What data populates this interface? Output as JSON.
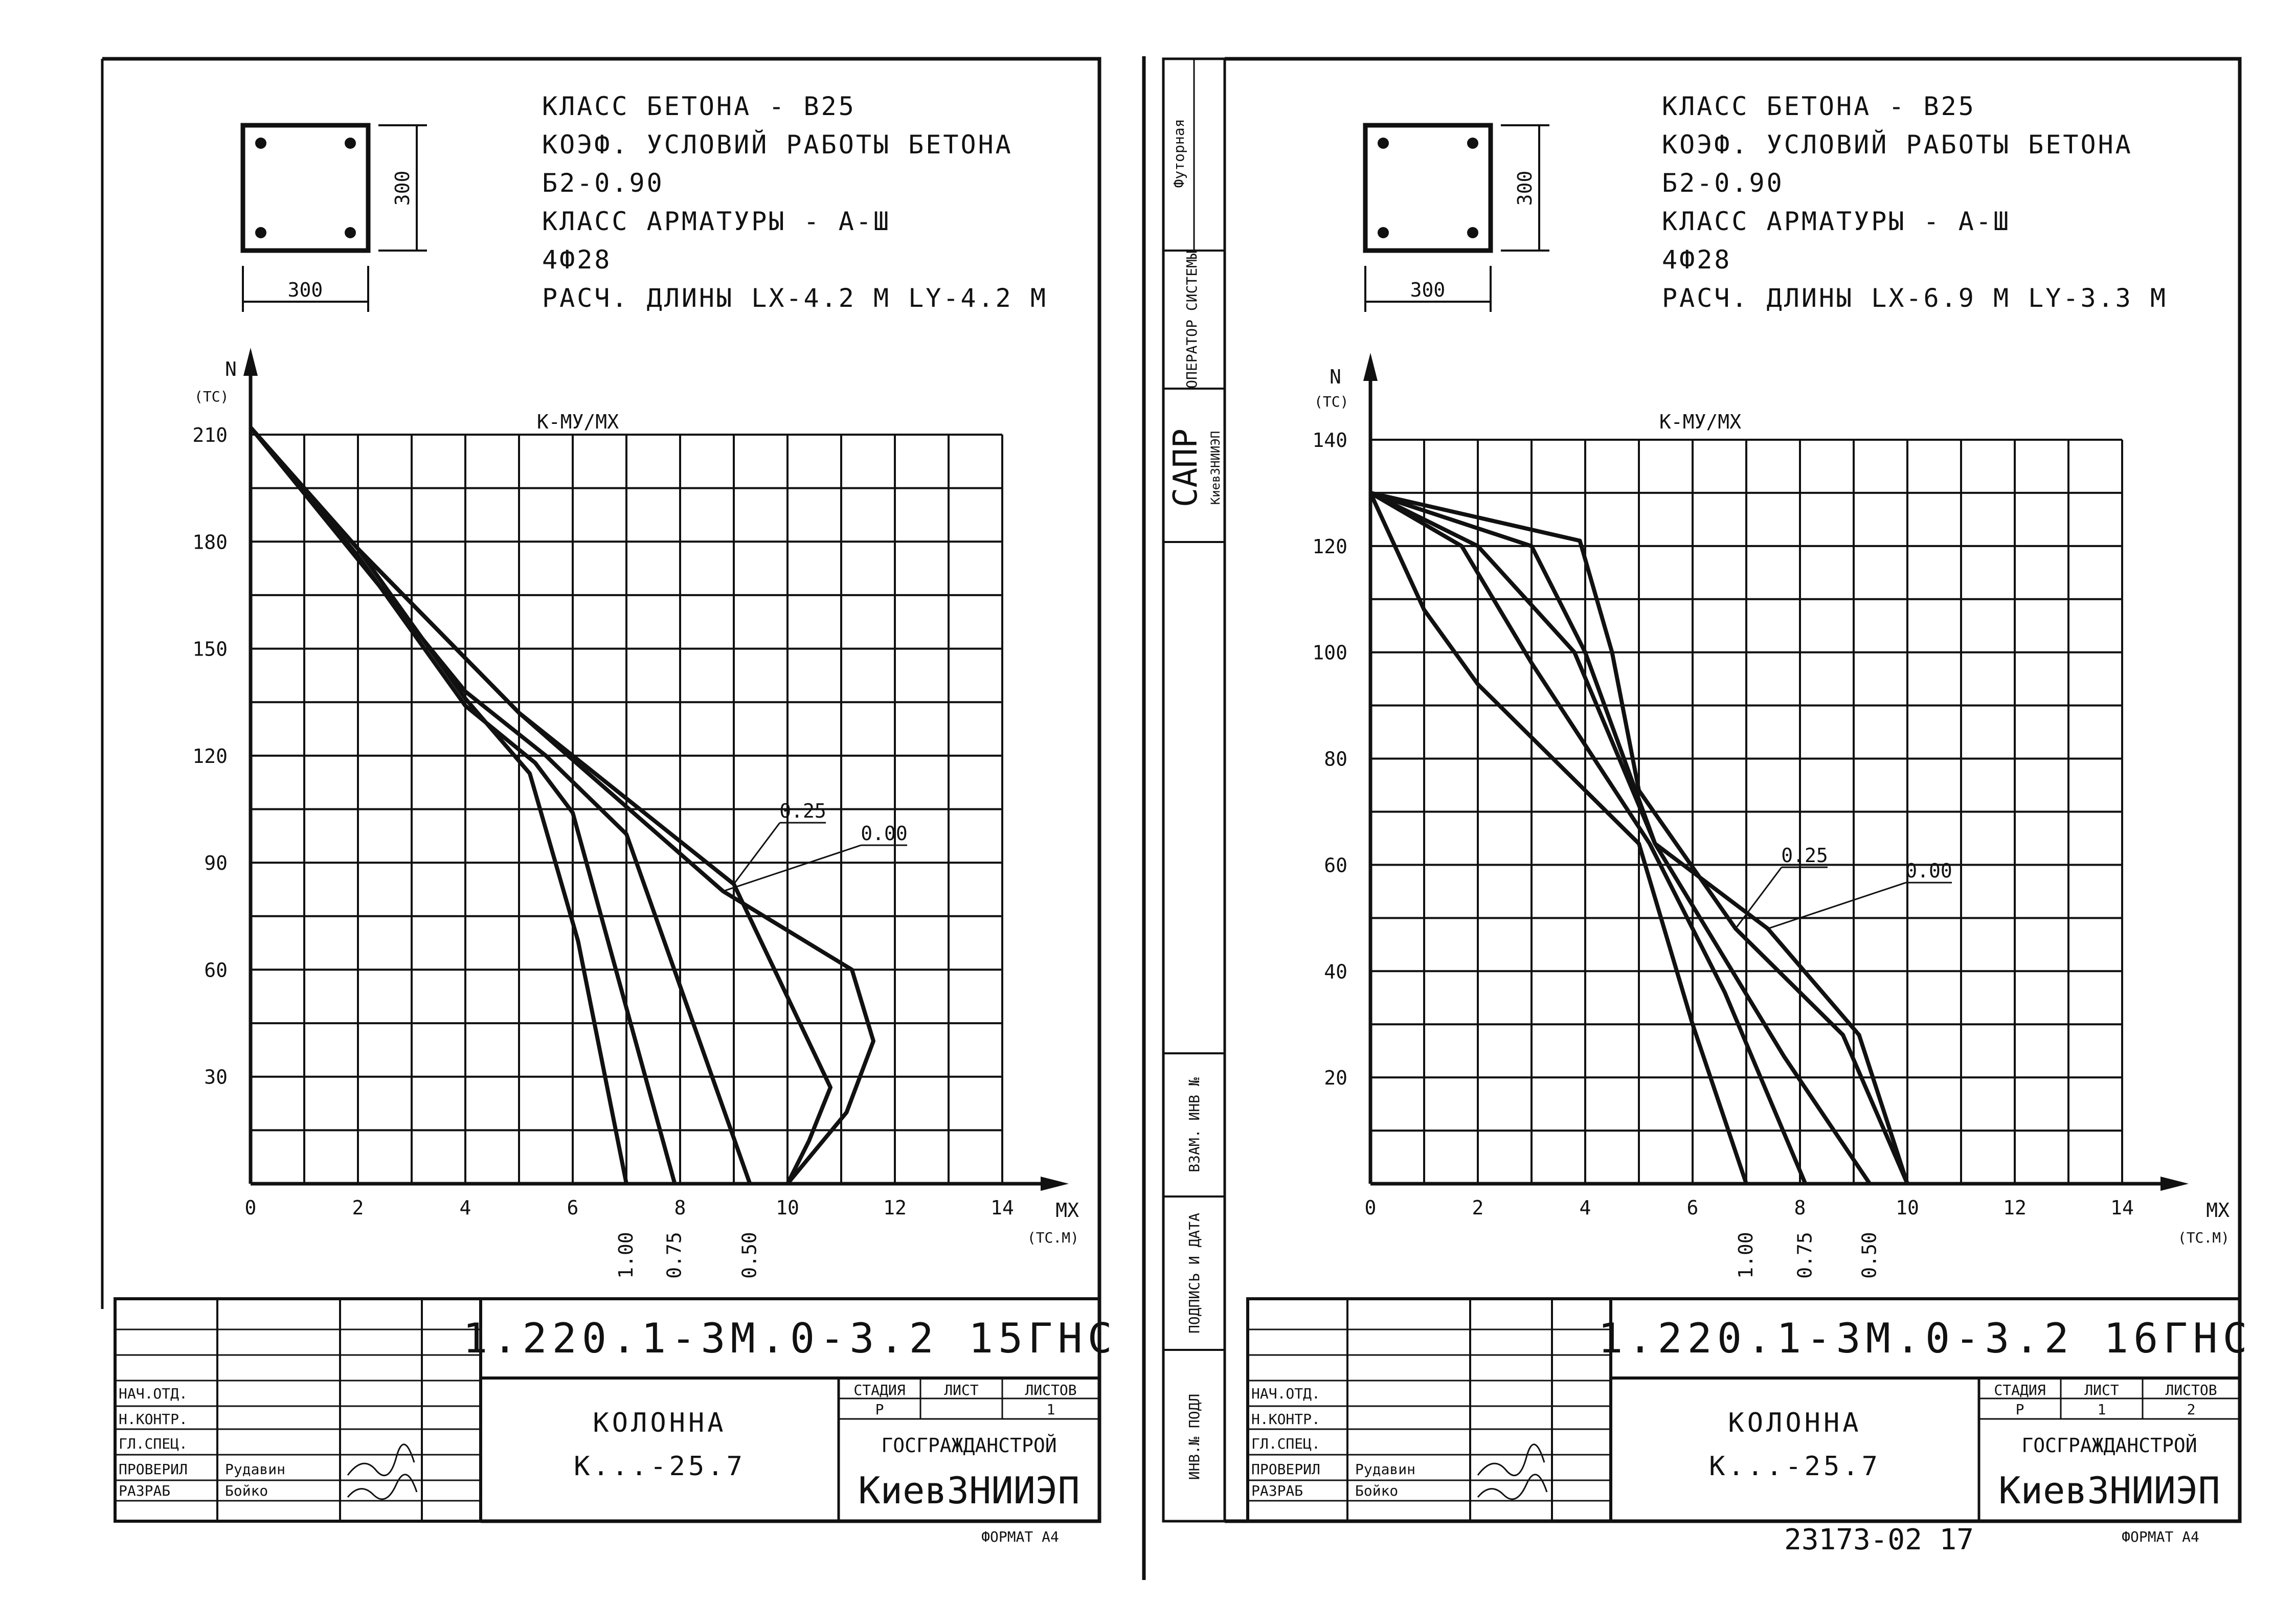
{
  "sheets": [
    {
      "section": {
        "dim_h": "300",
        "dim_v": "300"
      },
      "header": [
        "КЛАСС БЕТОНА - B25",
        "КОЭФ. УСЛОВИЙ РАБОТЫ БЕТОНА",
        "Б2-0.90",
        "КЛАСС АРМАТУРЫ - А-Ш",
        "4Ф28",
        "РАСЧ. ДЛИНЫ  LX-4.2 М  LY-4.2 М"
      ],
      "title_block": {
        "code": "1.220.1-3М.0-3.2 15ГНС",
        "name": "КОЛОННА",
        "mark": "К...-25.7",
        "stage_hdr": "СТАДИЯ",
        "sheet_hdr": "ЛИСТ",
        "sheets_hdr": "ЛИСТОВ",
        "stage": "Р",
        "sheet": "",
        "sheets": "1",
        "org1": "ГОСГРАЖДАНСТРОЙ",
        "org2": "КиевЗНИИЭП",
        "roles": [
          "НАЧ.ОТД.",
          "Н.КОНТР.",
          "ГЛ.СПЕЦ.",
          "ПРОВЕРИЛ",
          "РАЗРАБ"
        ],
        "names": [
          "",
          "",
          "",
          "Рудавин",
          "Бойко"
        ],
        "format": "ФОРМАТ А4"
      }
    },
    {
      "section": {
        "dim_h": "300",
        "dim_v": "300"
      },
      "header": [
        "КЛАСС БЕТОНА - B25",
        "КОЭФ. УСЛОВИЙ РАБОТЫ БЕТОНА",
        "Б2-0.90",
        "КЛАСС АРМАТУРЫ - А-Ш",
        "4Ф28",
        "РАСЧ. ДЛИНЫ  LX-6.9 М  LY-3.3 М"
      ],
      "title_block": {
        "code": "1.220.1-3М.0-3.2 16ГНС",
        "name": "КОЛОННА",
        "mark": "К...-25.7",
        "stage_hdr": "СТАДИЯ",
        "sheet_hdr": "ЛИСТ",
        "sheets_hdr": "ЛИСТОВ",
        "stage": "Р",
        "sheet": "1",
        "sheets": "2",
        "org1": "ГОСГРАЖДАНСТРОЙ",
        "org2": "КиевЗНИИЭП",
        "roles": [
          "НАЧ.ОТД.",
          "Н.КОНТР.",
          "ГЛ.СПЕЦ.",
          "ПРОВЕРИЛ",
          "РАЗРАБ"
        ],
        "names": [
          "",
          "",
          "",
          "Рудавин",
          "Бойко"
        ],
        "format": "ФОРМАТ А4"
      },
      "stamp": "23173-02 17"
    }
  ],
  "side_strip": {
    "futorial": "Футорная",
    "operator": "ОПЕРАТОР СИСТЕМЫ",
    "sapr": "САПР",
    "kiev": "КиевЗНИИЭП",
    "vzam": "ВЗАМ. ИНВ №",
    "podpis": "ПОДПИСЬ И ДАТА",
    "inv": "ИНВ.№ ПОДЛ"
  },
  "chart_data": [
    {
      "type": "line",
      "title": "К-МУ/МХ",
      "xlabel": "МХ (ТС.М)",
      "ylabel": "N (ТС)",
      "xlim": [
        0,
        14
      ],
      "ylim": [
        0,
        210
      ],
      "x_ticks": [
        0,
        2,
        4,
        6,
        8,
        10,
        12,
        14
      ],
      "y_ticks": [
        30,
        60,
        90,
        120,
        150,
        180,
        210
      ],
      "grid": true,
      "series": [
        {
          "name": "1.00",
          "points": [
            [
              0,
              212
            ],
            [
              2,
              178
            ],
            [
              4,
              136
            ],
            [
              5.2,
              115
            ],
            [
              6.1,
              68
            ],
            [
              7.0,
              0
            ]
          ]
        },
        {
          "name": "0.75",
          "points": [
            [
              0,
              212
            ],
            [
              2,
              176
            ],
            [
              4,
              134
            ],
            [
              5.3,
              118
            ],
            [
              6.0,
              104
            ],
            [
              7.9,
              0
            ]
          ]
        },
        {
          "name": "0.50",
          "points": [
            [
              0,
              212
            ],
            [
              2,
              175
            ],
            [
              4,
              138
            ],
            [
              5.5,
              120
            ],
            [
              7.0,
              98
            ],
            [
              9.3,
              0
            ]
          ]
        },
        {
          "name": "0.25",
          "points": [
            [
              0,
              212
            ],
            [
              2,
              178
            ],
            [
              5,
              132
            ],
            [
              9,
              84
            ],
            [
              10.8,
              27
            ],
            [
              10.4,
              12
            ],
            [
              10,
              0
            ]
          ],
          "label": "0.25"
        },
        {
          "name": "0.00",
          "points": [
            [
              0,
              212
            ],
            [
              2,
              178
            ],
            [
              5,
              132
            ],
            [
              8.8,
              82
            ],
            [
              11.2,
              60
            ],
            [
              11.6,
              40
            ],
            [
              11.1,
              20
            ],
            [
              10,
              0
            ]
          ],
          "label": "0.00"
        }
      ]
    },
    {
      "type": "line",
      "title": "К-МУ/МХ",
      "xlabel": "МХ (ТС.М)",
      "ylabel": "N (ТС)",
      "xlim": [
        0,
        14
      ],
      "ylim": [
        0,
        140
      ],
      "x_ticks": [
        0,
        2,
        4,
        6,
        8,
        10,
        12,
        14
      ],
      "y_ticks": [
        20,
        40,
        60,
        80,
        100,
        120,
        140
      ],
      "grid": true,
      "series": [
        {
          "name": "1.00",
          "points": [
            [
              0,
              130
            ],
            [
              1,
              108
            ],
            [
              2,
              94
            ],
            [
              5.0,
              64
            ],
            [
              6.0,
              30
            ],
            [
              7.0,
              0
            ]
          ]
        },
        {
          "name": "0.75",
          "points": [
            [
              0,
              130
            ],
            [
              1.7,
              120
            ],
            [
              3,
              98
            ],
            [
              5.2,
              64
            ],
            [
              6.6,
              36
            ],
            [
              8.1,
              0
            ]
          ]
        },
        {
          "name": "0.50",
          "points": [
            [
              0,
              130
            ],
            [
              3,
              120
            ],
            [
              4,
              100
            ],
            [
              5.3,
              64
            ],
            [
              7.7,
              24
            ],
            [
              9.3,
              0
            ]
          ]
        },
        {
          "name": "0.25",
          "points": [
            [
              0,
              130
            ],
            [
              3.9,
              121
            ],
            [
              4.5,
              100
            ],
            [
              5.0,
              74
            ],
            [
              6.8,
              48
            ],
            [
              8.8,
              28
            ],
            [
              10.0,
              0
            ]
          ],
          "label": "0.25"
        },
        {
          "name": "0.00",
          "points": [
            [
              0,
              130
            ],
            [
              2,
              120
            ],
            [
              3.8,
              100
            ],
            [
              5.3,
              64
            ],
            [
              7.4,
              48
            ],
            [
              9.1,
              28
            ],
            [
              10,
              0
            ]
          ],
          "label": "0.00"
        }
      ]
    }
  ]
}
